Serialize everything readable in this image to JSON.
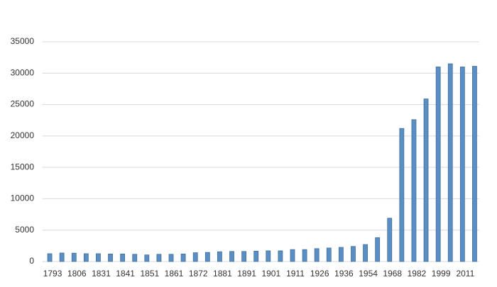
{
  "chart_data": {
    "type": "bar",
    "categories": [
      "1793",
      null,
      "1806",
      null,
      "1831",
      null,
      "1841",
      null,
      "1851",
      null,
      "1861",
      null,
      "1872",
      null,
      "1881",
      null,
      "1891",
      null,
      "1901",
      null,
      "1911",
      null,
      "1926",
      null,
      "1936",
      null,
      "1954",
      null,
      "1968",
      null,
      "1982",
      null,
      "1999",
      null,
      "2011",
      null
    ],
    "values": [
      1240,
      1350,
      1330,
      1240,
      1240,
      1200,
      1200,
      1150,
      1050,
      1150,
      1150,
      1200,
      1400,
      1450,
      1550,
      1600,
      1600,
      1650,
      1700,
      1700,
      1900,
      1900,
      2050,
      2150,
      2250,
      2400,
      2700,
      3800,
      6900,
      21200,
      22600,
      25900,
      31000,
      31500,
      31000,
      31100
    ],
    "color": "#5b8fc4",
    "ylim": [
      0,
      35000
    ],
    "yticks": [
      0,
      5000,
      10000,
      15000,
      20000,
      25000,
      30000,
      35000
    ],
    "grid": true
  }
}
